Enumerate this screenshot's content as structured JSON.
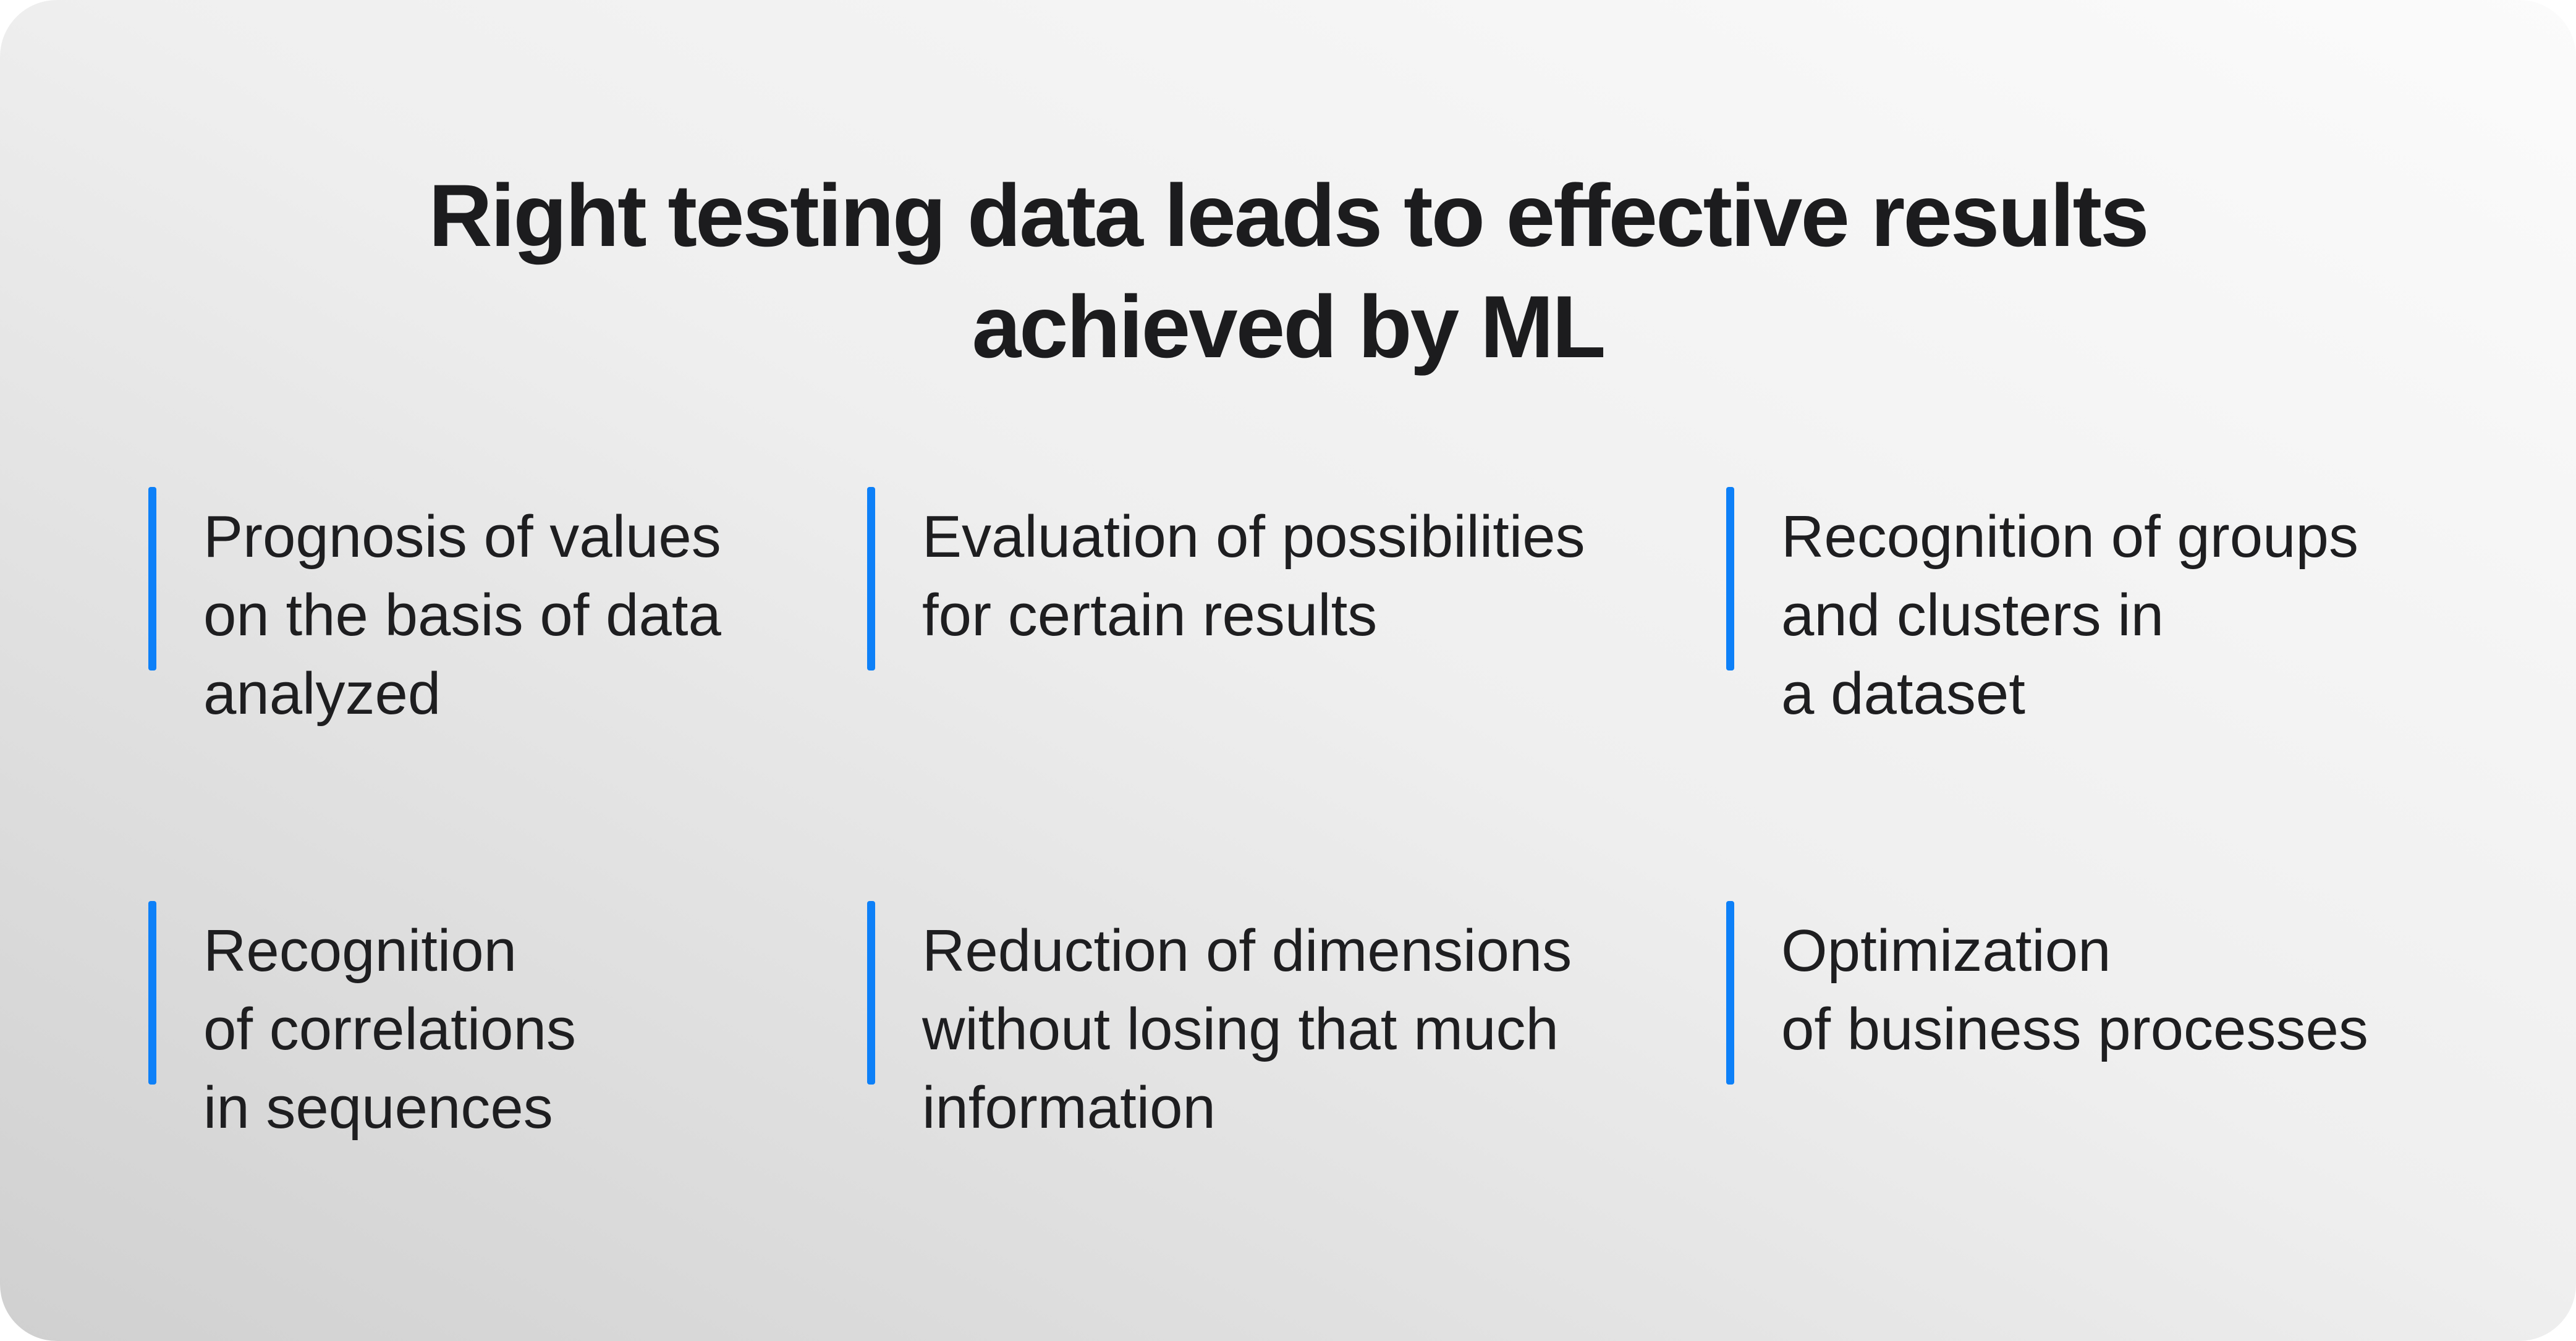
{
  "title": "Right testing data leads to effective results\nachieved by ML",
  "features": [
    {
      "text": "Prognosis of values\non the basis of data\nanalyzed"
    },
    {
      "text": "Evaluation of possibilities\nfor certain results"
    },
    {
      "text": "Recognition of groups\nand clusters in\na dataset"
    },
    {
      "text": "Recognition\nof correlations\nin sequences"
    },
    {
      "text": "Reduction of dimensions\nwithout losing that much\ninformation"
    },
    {
      "text": "Optimization\nof business processes"
    }
  ],
  "colors": {
    "accent": "#0d80f8",
    "title": "#1c1c1e",
    "text": "#1e1e20",
    "card-dark": "#d0d0d0",
    "card-mid": "#efefef",
    "card-light": "#fbfbfb",
    "page-bg": "#ffffff"
  }
}
